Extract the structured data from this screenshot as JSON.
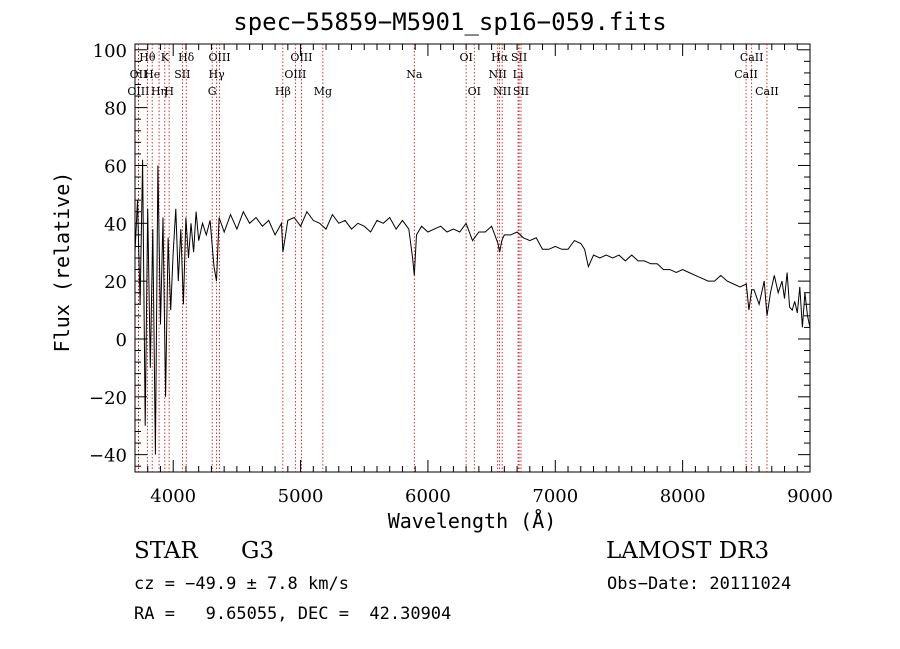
{
  "chart_data": {
    "type": "line",
    "title": "spec−55859−M5901_sp16−059.fits",
    "xlabel": "Wavelength (Å)",
    "ylabel": "Flux (relative)",
    "xlim": [
      3700,
      9000
    ],
    "ylim": [
      -46,
      102
    ],
    "xticks": [
      4000,
      5000,
      6000,
      7000,
      8000,
      9000
    ],
    "xtick_labels": [
      "4000",
      "5000",
      "6000",
      "7000",
      "8000",
      "9000"
    ],
    "yticks": [
      -40,
      -20,
      0,
      20,
      40,
      60,
      80,
      100
    ],
    "ytick_labels": [
      "−40",
      "−20",
      "0",
      "20",
      "40",
      "60",
      "80",
      "100"
    ],
    "series": [
      {
        "name": "spectrum",
        "x": [
          3700,
          3720,
          3740,
          3760,
          3780,
          3800,
          3820,
          3840,
          3860,
          3880,
          3900,
          3920,
          3940,
          3960,
          3980,
          4000,
          4020,
          4040,
          4060,
          4080,
          4100,
          4120,
          4140,
          4160,
          4180,
          4200,
          4230,
          4260,
          4290,
          4320,
          4340,
          4360,
          4400,
          4450,
          4500,
          4550,
          4600,
          4650,
          4700,
          4750,
          4800,
          4850,
          4861,
          4900,
          4950,
          5000,
          5050,
          5100,
          5150,
          5200,
          5250,
          5300,
          5350,
          5400,
          5450,
          5500,
          5550,
          5600,
          5650,
          5700,
          5750,
          5800,
          5850,
          5880,
          5893,
          5910,
          5950,
          6000,
          6050,
          6100,
          6150,
          6200,
          6250,
          6300,
          6350,
          6400,
          6450,
          6500,
          6550,
          6563,
          6580,
          6600,
          6650,
          6700,
          6750,
          6800,
          6850,
          6900,
          6950,
          7000,
          7050,
          7100,
          7150,
          7200,
          7230,
          7260,
          7300,
          7350,
          7400,
          7450,
          7500,
          7550,
          7600,
          7650,
          7700,
          7750,
          7800,
          7850,
          7900,
          7950,
          8000,
          8050,
          8100,
          8150,
          8200,
          8250,
          8300,
          8350,
          8400,
          8450,
          8500,
          8520,
          8542,
          8560,
          8600,
          8640,
          8662,
          8690,
          8720,
          8750,
          8780,
          8800,
          8820,
          8840,
          8860,
          8880,
          8900,
          8920,
          8940,
          8960,
          8980,
          9000
        ],
        "y": [
          30,
          48,
          12,
          62,
          -30,
          45,
          -10,
          38,
          -40,
          60,
          5,
          42,
          -20,
          35,
          10,
          30,
          45,
          20,
          38,
          12,
          42,
          28,
          40,
          30,
          44,
          34,
          40,
          36,
          41,
          25,
          20,
          42,
          37,
          43,
          38,
          44,
          40,
          42,
          39,
          41,
          36,
          40,
          30,
          41,
          42,
          39,
          44,
          41,
          40,
          38,
          43,
          40,
          41,
          38,
          40,
          39,
          37,
          41,
          40,
          42,
          38,
          41,
          38,
          28,
          22,
          36,
          39,
          37,
          38,
          39,
          37,
          38,
          37,
          40,
          34,
          37,
          37,
          39,
          33,
          30,
          34,
          36,
          36,
          37,
          35,
          34,
          35,
          31,
          31,
          32,
          31,
          31,
          34,
          33,
          31,
          25,
          29,
          28,
          29,
          28,
          29,
          27,
          29,
          27,
          27,
          26,
          26,
          24,
          24,
          23,
          24,
          23,
          22,
          21,
          20,
          20,
          22,
          20,
          19,
          18,
          19,
          10,
          17,
          17,
          12,
          20,
          8,
          16,
          22,
          16,
          20,
          14,
          23,
          11,
          10,
          13,
          9,
          18,
          4,
          16,
          8,
          4
        ]
      }
    ],
    "lines": [
      {
        "label": "OII",
        "wavelength": 3727,
        "row": 1
      },
      {
        "label": "OIII",
        "wavelength": 3727,
        "row": 2
      },
      {
        "label": "Hθ",
        "wavelength": 3797,
        "row": 0
      },
      {
        "label": "He",
        "wavelength": 3835,
        "row": 1
      },
      {
        "label": "Hη",
        "wavelength": 3889,
        "row": 2
      },
      {
        "label": "K",
        "wavelength": 3934,
        "row": 0
      },
      {
        "label": "H",
        "wavelength": 3968,
        "row": 2
      },
      {
        "label": "SII",
        "wavelength": 4072,
        "row": 1
      },
      {
        "label": "Hδ",
        "wavelength": 4102,
        "row": 0
      },
      {
        "label": "OIII",
        "wavelength": 4364,
        "row": 0
      },
      {
        "label": "Hγ",
        "wavelength": 4341,
        "row": 1
      },
      {
        "label": "G",
        "wavelength": 4306,
        "row": 2
      },
      {
        "label": "Hβ",
        "wavelength": 4861,
        "row": 2
      },
      {
        "label": "OIII",
        "wavelength": 5007,
        "row": 0
      },
      {
        "label": "OIII",
        "wavelength": 4959,
        "row": 1
      },
      {
        "label": "Mg",
        "wavelength": 5175,
        "row": 2
      },
      {
        "label": "Na",
        "wavelength": 5893,
        "row": 1
      },
      {
        "label": "OI",
        "wavelength": 6300,
        "row": 0
      },
      {
        "label": "OI",
        "wavelength": 6364,
        "row": 2
      },
      {
        "label": "Hα",
        "wavelength": 6563,
        "row": 0
      },
      {
        "label": "NII",
        "wavelength": 6548,
        "row": 1
      },
      {
        "label": "NII",
        "wavelength": 6583,
        "row": 2
      },
      {
        "label": "SII",
        "wavelength": 6716,
        "row": 0
      },
      {
        "label": "Li",
        "wavelength": 6708,
        "row": 1
      },
      {
        "label": "SII",
        "wavelength": 6731,
        "row": 2
      },
      {
        "label": "CaII",
        "wavelength": 8542,
        "row": 0
      },
      {
        "label": "CaII",
        "wavelength": 8498,
        "row": 1
      },
      {
        "label": "CaII",
        "wavelength": 8662,
        "row": 2
      }
    ]
  },
  "info": {
    "class_label": "STAR",
    "subclass": "G3",
    "survey": "LAMOST DR3",
    "cz": "cz = −49.9 ± 7.8 km/s",
    "obs_date": "Obs−Date: 20111024",
    "radec": "RA =   9.65055, DEC =  42.30904"
  }
}
